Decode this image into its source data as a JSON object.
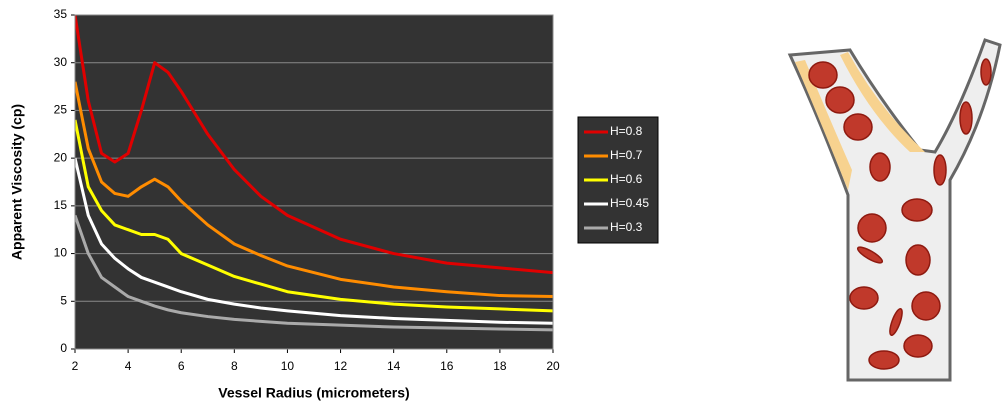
{
  "chart_data": {
    "type": "line",
    "x_label": "Vessel Radius (micrometers)",
    "y_label": "Apparent Viscosity (cp)",
    "x": [
      2,
      2.5,
      3,
      3.5,
      4,
      4.5,
      5,
      5.5,
      6,
      7,
      8,
      9,
      10,
      12,
      14,
      16,
      18,
      20
    ],
    "series": [
      {
        "name": "H=0.8",
        "color": "#e00000",
        "values": [
          35,
          26,
          20.5,
          19.6,
          20.5,
          25,
          30,
          29,
          27,
          22.5,
          18.8,
          16,
          14,
          11.5,
          10,
          9,
          8.5,
          8
        ]
      },
      {
        "name": "H=0.7",
        "color": "#ff8c00",
        "values": [
          28,
          21,
          17.5,
          16.3,
          16,
          17,
          17.8,
          17,
          15.5,
          13,
          11,
          9.8,
          8.7,
          7.3,
          6.5,
          6,
          5.6,
          5.5
        ]
      },
      {
        "name": "H=0.6",
        "color": "#ffff00",
        "values": [
          24,
          17,
          14.5,
          13,
          12.5,
          12,
          12,
          11.5,
          10,
          8.8,
          7.6,
          6.8,
          6,
          5.2,
          4.7,
          4.4,
          4.2,
          4
        ]
      },
      {
        "name": "H=0.45",
        "color": "#ffffff",
        "values": [
          20,
          14,
          11,
          9.5,
          8.4,
          7.5,
          7,
          6.5,
          6,
          5.2,
          4.7,
          4.3,
          4,
          3.5,
          3.2,
          3,
          2.8,
          2.7
        ]
      },
      {
        "name": "H=0.3",
        "color": "#aaaaaa",
        "values": [
          14,
          10,
          7.5,
          6.5,
          5.5,
          5,
          4.5,
          4.1,
          3.8,
          3.4,
          3.1,
          2.9,
          2.7,
          2.5,
          2.3,
          2.2,
          2.1,
          2
        ]
      }
    ],
    "xlim": [
      2,
      20
    ],
    "ylim": [
      0,
      35
    ],
    "xticks": [
      2,
      4,
      6,
      8,
      10,
      12,
      14,
      16,
      18,
      20
    ],
    "yticks": [
      0,
      5,
      10,
      15,
      20,
      25,
      30,
      35
    ],
    "grid": true,
    "background": "#333333",
    "legend": "right"
  }
}
